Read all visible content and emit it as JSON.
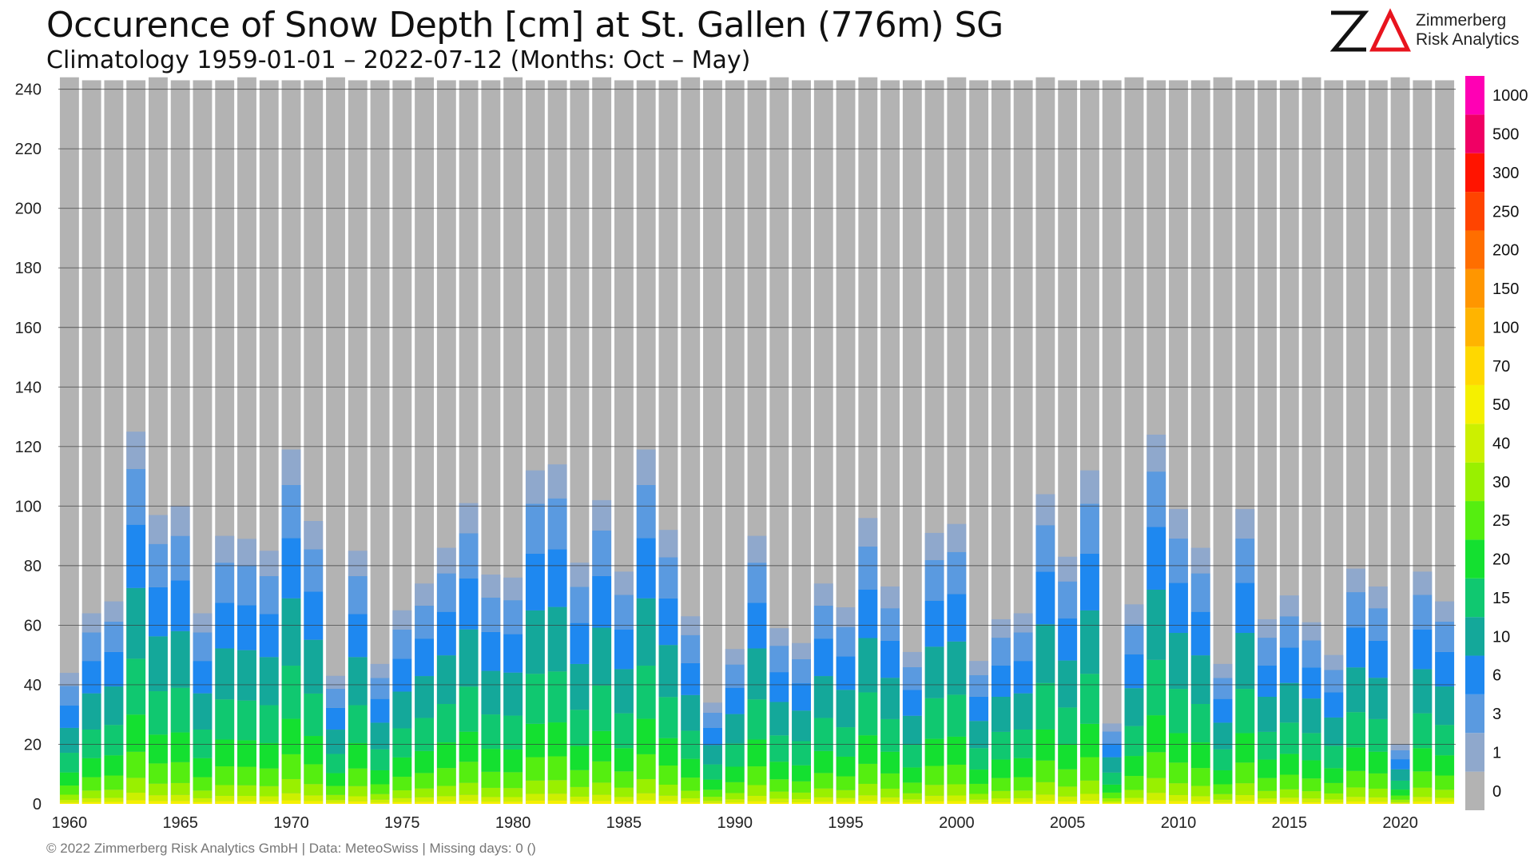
{
  "header": {
    "title": "Occurence of Snow Depth [cm] at St. Gallen (776m) SG",
    "subtitle": "Climatology 1959-01-01 – 2022-07-12 (Months: Oct – May)"
  },
  "logo": {
    "mark": "ZA",
    "line1": "Zimmerberg",
    "line2": "Risk Analytics"
  },
  "footer": "©  2022 Zimmerberg Risk Analytics GmbH | Data: MeteoSwiss | Missing days: 0 ()",
  "colors": {
    "background_bar": "#b3b3b3",
    "levels": [
      "#8fa8cc",
      "#5a9ae0",
      "#1e88f0",
      "#14a89a",
      "#10c870",
      "#14e030",
      "#55ee10",
      "#99f000",
      "#ccf000",
      "#f5f000",
      "#ffd800",
      "#ffb400",
      "#ff9600",
      "#ff6e00",
      "#ff4400",
      "#ff1400",
      "#f00064",
      "#ff00b4",
      "#ff00ff"
    ]
  },
  "chart_data": {
    "type": "bar",
    "stacked": true,
    "x": [
      1960,
      1961,
      1962,
      1963,
      1964,
      1965,
      1966,
      1967,
      1968,
      1969,
      1970,
      1971,
      1972,
      1973,
      1974,
      1975,
      1976,
      1977,
      1978,
      1979,
      1980,
      1981,
      1982,
      1983,
      1984,
      1985,
      1986,
      1987,
      1988,
      1989,
      1990,
      1991,
      1992,
      1993,
      1994,
      1995,
      1996,
      1997,
      1998,
      1999,
      2000,
      2001,
      2002,
      2003,
      2004,
      2005,
      2006,
      2007,
      2008,
      2009,
      2010,
      2011,
      2012,
      2013,
      2014,
      2015,
      2016,
      2017,
      2018,
      2019,
      2020,
      2021,
      2022
    ],
    "x_ticks": [
      "1960",
      "1965",
      "1970",
      "1975",
      "1980",
      "1985",
      "1990",
      "1995",
      "2000",
      "2005",
      "2010",
      "2015",
      "2020"
    ],
    "y_ticks": [
      "0",
      "20",
      "40",
      "60",
      "80",
      "100",
      "120",
      "140",
      "160",
      "180",
      "200",
      "220",
      "240"
    ],
    "ylim": [
      0,
      245
    ],
    "grid": true,
    "total_days": [
      244,
      243,
      243,
      243,
      244,
      243,
      243,
      243,
      244,
      243,
      243,
      243,
      244,
      243,
      243,
      243,
      244,
      243,
      243,
      243,
      244,
      243,
      243,
      243,
      244,
      243,
      243,
      243,
      244,
      243,
      243,
      243,
      244,
      243,
      243,
      243,
      244,
      243,
      243,
      243,
      244,
      243,
      243,
      243,
      244,
      243,
      243,
      243,
      244,
      243,
      243,
      243,
      244,
      243,
      243,
      243,
      244,
      243,
      243,
      243,
      244,
      243,
      243
    ],
    "snow_cover_days": [
      44,
      64,
      68,
      125,
      97,
      100,
      64,
      90,
      89,
      85,
      119,
      95,
      43,
      85,
      47,
      65,
      74,
      86,
      101,
      77,
      76,
      112,
      114,
      81,
      102,
      78,
      119,
      92,
      63,
      34,
      52,
      90,
      59,
      54,
      74,
      66,
      96,
      73,
      51,
      91,
      94,
      48,
      62,
      64,
      104,
      83,
      112,
      27,
      67,
      124,
      99,
      86,
      47,
      99,
      62,
      70,
      61,
      50,
      79,
      73,
      20,
      78,
      68
    ],
    "legend": {
      "title": "",
      "levels_cm": [
        "0",
        "1",
        "3",
        "6",
        "10",
        "15",
        "20",
        "25",
        "30",
        "40",
        "50",
        "70",
        "100",
        "150",
        "200",
        "250",
        "300",
        "500",
        "1000"
      ],
      "colorbar_labels": [
        "0",
        "1",
        "3",
        "6",
        "10",
        "15",
        "20",
        "25",
        "30",
        "40",
        "50",
        "70",
        "100",
        "150",
        "200",
        "250",
        "300",
        "500",
        "1000"
      ]
    }
  }
}
